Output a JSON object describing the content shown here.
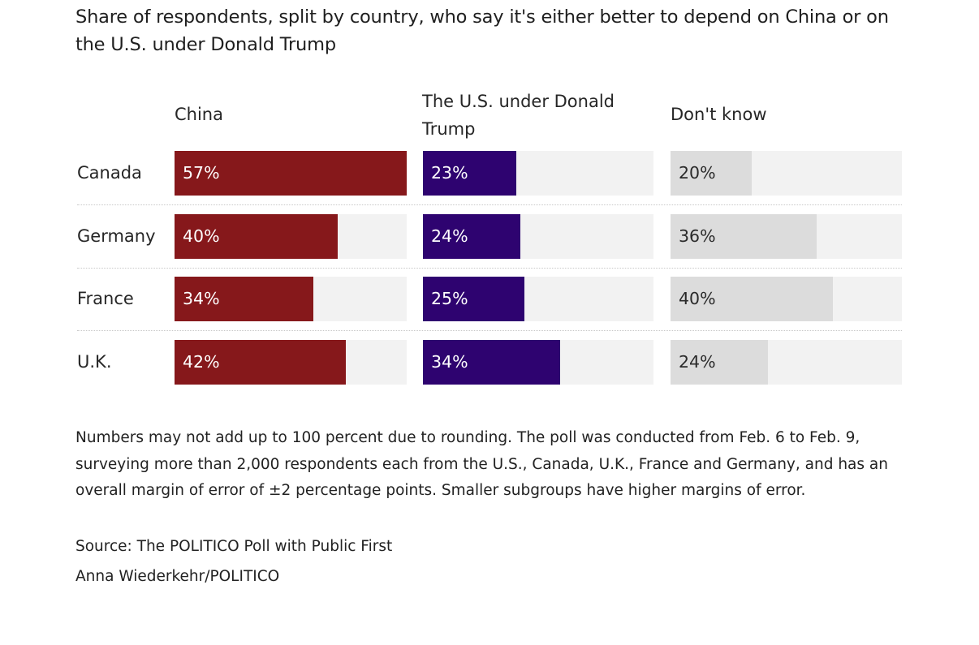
{
  "chart_data": {
    "type": "bar",
    "orientation": "horizontal",
    "layout": "small-multiples",
    "title": "Share of respondents, split by country, who say it's either better to depend on China or on the U.S. under Donald Trump",
    "categories": [
      "Canada",
      "Germany",
      "France",
      "U.K."
    ],
    "series": [
      {
        "name": "China",
        "values": [
          57,
          40,
          34,
          42
        ],
        "color": "#86181b",
        "label_color": "#ffffff"
      },
      {
        "name": "The U.S. under Donald Trump",
        "values": [
          23,
          24,
          25,
          34
        ],
        "color": "#2e0370",
        "label_color": "#ffffff"
      },
      {
        "name": "Don't know",
        "values": [
          20,
          36,
          40,
          24
        ],
        "color": "#dcdcdc",
        "label_color": "#2a2a2a"
      }
    ],
    "value_suffix": "%",
    "xlim": [
      0,
      57
    ],
    "track_color": "#f2f2f2",
    "grid": false,
    "note": "Numbers may not add up to 100 percent due to rounding. The poll was conducted from Feb. 6 to Feb. 9, surveying more than 2,000 respondents each from the U.S., Canada, U.K., France and Germany, and has an overall margin of error of ±2 percentage points. Smaller subgroups have higher margins of error.",
    "source": "Source: The POLITICO Poll with Public First",
    "credit": "Anna Wiederkehr/POLITICO"
  }
}
